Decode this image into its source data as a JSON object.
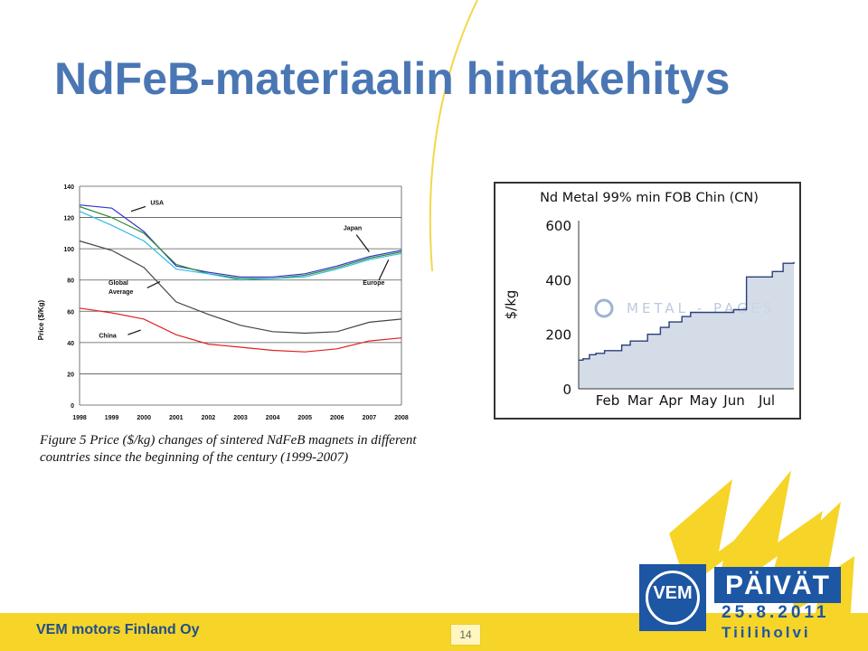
{
  "slide": {
    "title": "NdFeB-materiaalin hintakehitys",
    "caption": "Figure 5 Price ($/kg) changes of sintered NdFeB magnets in different countries since the beginning of the century (1999-2007)",
    "footer_company": "VEM motors Finland Oy",
    "page_number": "14"
  },
  "logo": {
    "vem": "VEM",
    "paivat": "PÄIVÄT",
    "date": "25.8.2011",
    "place": "Tiiliholvi"
  },
  "colors": {
    "title": "#4a77b4",
    "footer_bar": "#f6d428",
    "brand_blue": "#1d56a3"
  },
  "chart_data": [
    {
      "type": "line",
      "ylabel": "Price ($/Kg)",
      "ylim": [
        0,
        140
      ],
      "yticks": [
        0,
        20,
        40,
        60,
        80,
        100,
        120,
        140
      ],
      "xticks": [
        "1998",
        "1999",
        "2000",
        "2001",
        "2002",
        "2003",
        "2004",
        "2005",
        "2006",
        "2007",
        "2008"
      ],
      "grid": true,
      "series": [
        {
          "name": "USA",
          "color": "#3333cc",
          "x": [
            1998,
            1999,
            2000,
            2001,
            2002,
            2003,
            2004,
            2005,
            2006,
            2007,
            2008
          ],
          "values": [
            128,
            126,
            111,
            89,
            85,
            82,
            82,
            84,
            89,
            95,
            99
          ]
        },
        {
          "name": "Japan",
          "color": "#2e8b3a",
          "x": [
            1998,
            1999,
            2000,
            2001,
            2002,
            2003,
            2004,
            2005,
            2006,
            2007,
            2008
          ],
          "values": [
            127,
            120,
            110,
            90,
            84,
            81,
            81,
            83,
            88,
            94,
            98
          ]
        },
        {
          "name": "Europe",
          "color": "#33bbe0",
          "x": [
            1998,
            1999,
            2000,
            2001,
            2002,
            2003,
            2004,
            2005,
            2006,
            2007,
            2008
          ],
          "values": [
            124,
            115,
            105,
            87,
            84,
            80,
            81,
            82,
            87,
            93,
            97
          ]
        },
        {
          "name": "Global Average",
          "color": "#444444",
          "x": [
            1998,
            1999,
            2000,
            2001,
            2002,
            2003,
            2004,
            2005,
            2006,
            2007,
            2008
          ],
          "values": [
            105,
            99,
            88,
            66,
            58,
            51,
            47,
            46,
            47,
            53,
            55
          ]
        },
        {
          "name": "China",
          "color": "#dd2222",
          "x": [
            1998,
            1999,
            2000,
            2001,
            2002,
            2003,
            2004,
            2005,
            2006,
            2007,
            2008
          ],
          "values": [
            62,
            59,
            55,
            45,
            39,
            37,
            35,
            34,
            36,
            41,
            43
          ]
        }
      ]
    },
    {
      "type": "area",
      "title": "Nd Metal 99% min FOB Chin (CN)",
      "ylabel": "$/kg",
      "ylim": [
        0,
        600
      ],
      "yticks": [
        0,
        200,
        400,
        600
      ],
      "xticks": [
        "Feb",
        "Mar",
        "Apr",
        "May",
        "Jun",
        "Jul"
      ],
      "watermark": "METAL - PAGES",
      "fill": "#cdd6e4",
      "line": "#2a3f7a",
      "x": [
        0.0,
        0.02,
        0.05,
        0.08,
        0.12,
        0.2,
        0.24,
        0.32,
        0.38,
        0.42,
        0.48,
        0.52,
        0.6,
        0.72,
        0.78,
        0.85,
        0.9,
        0.95,
        1.0
      ],
      "values": [
        105,
        110,
        125,
        130,
        140,
        160,
        175,
        200,
        225,
        245,
        265,
        280,
        280,
        290,
        410,
        410,
        430,
        460,
        465
      ]
    }
  ]
}
